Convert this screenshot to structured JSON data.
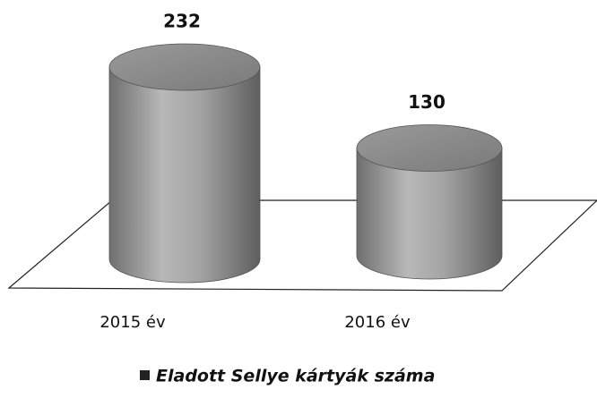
{
  "chart_data": {
    "type": "bar3d",
    "categories": [
      "2015 év",
      "2016 év"
    ],
    "series": [
      {
        "name": "Eladott Sellye kártyák száma",
        "color": "#8a8a8a",
        "values": [
          232,
          130
        ]
      }
    ]
  }
}
